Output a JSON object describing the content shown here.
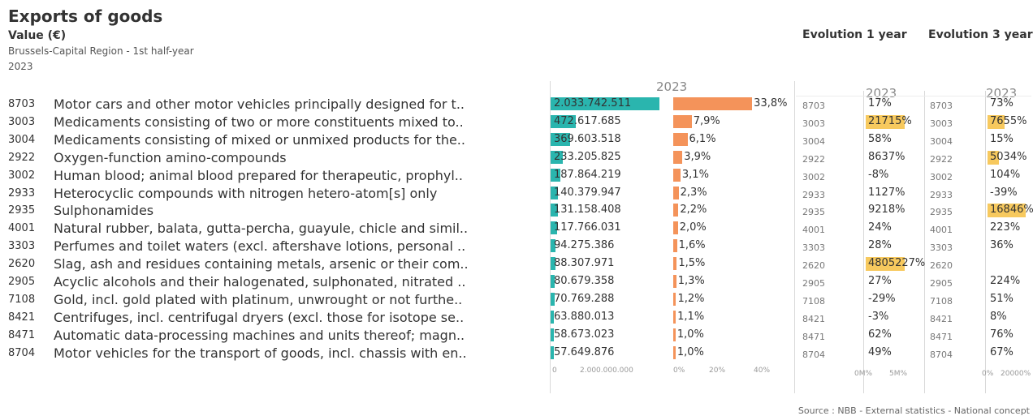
{
  "header": {
    "title": "Exports of goods",
    "subtitle": "Value (€)",
    "region": "Brussels-Capital Region - 1st half-year",
    "year": "2023",
    "evo1_label": "Evolution 1 year",
    "evo3_label": "Evolution 3 years"
  },
  "footer": {
    "source": "Source : NBB - External statistics - National concept"
  },
  "colors": {
    "value_bar": "#2ab5ae",
    "share_bar": "#f4935a",
    "highlight": "#f7c95e"
  },
  "chart_data": {
    "type": "table",
    "column_year": "2023",
    "value_axis": {
      "ticks": [
        "0",
        "2.000.000.000"
      ],
      "range": [
        0,
        2200000000
      ]
    },
    "share_axis": {
      "ticks": [
        "0%",
        "20%",
        "40%"
      ],
      "range": [
        0,
        40
      ]
    },
    "evo1_axis": {
      "ticks": [
        "0M%",
        "5M%"
      ]
    },
    "evo3_axis": {
      "ticks": [
        "0%",
        "20000%"
      ]
    },
    "rows": [
      {
        "code": "8703",
        "desc": "Motor cars and other motor vehicles principally designed for t..",
        "value": 2033742511,
        "value_label": "2.033.742.511",
        "share": 33.8,
        "share_label": "33,8%",
        "evo1": 17,
        "evo1_label": "17%",
        "evo3": 73,
        "evo3_label": "73%"
      },
      {
        "code": "3003",
        "desc": "Medicaments consisting of two or more constituents mixed to..",
        "value": 472617685,
        "value_label": "472.617.685",
        "share": 7.9,
        "share_label": "7,9%",
        "evo1": 21715,
        "evo1_label": "21715%",
        "evo3": 7655,
        "evo3_label": "7655%"
      },
      {
        "code": "3004",
        "desc": "Medicaments consisting of mixed or unmixed products for the..",
        "value": 369603518,
        "value_label": "369.603.518",
        "share": 6.1,
        "share_label": "6,1%",
        "evo1": 58,
        "evo1_label": "58%",
        "evo3": 15,
        "evo3_label": "15%"
      },
      {
        "code": "2922",
        "desc": "Oxygen-function amino-compounds",
        "value": 233205825,
        "value_label": "233.205.825",
        "share": 3.9,
        "share_label": "3,9%",
        "evo1": 8637,
        "evo1_label": "8637%",
        "evo3": 5034,
        "evo3_label": "5034%"
      },
      {
        "code": "3002",
        "desc": "Human blood; animal blood prepared for therapeutic, prophyl..",
        "value": 187864219,
        "value_label": "187.864.219",
        "share": 3.1,
        "share_label": "3,1%",
        "evo1": -8,
        "evo1_label": "-8%",
        "evo3": 104,
        "evo3_label": "104%"
      },
      {
        "code": "2933",
        "desc": "Heterocyclic compounds with nitrogen hetero-atom[s] only",
        "value": 140379947,
        "value_label": "140.379.947",
        "share": 2.3,
        "share_label": "2,3%",
        "evo1": 1127,
        "evo1_label": "1127%",
        "evo3": -39,
        "evo3_label": "-39%"
      },
      {
        "code": "2935",
        "desc": "Sulphonamides",
        "value": 131158408,
        "value_label": "131.158.408",
        "share": 2.2,
        "share_label": "2,2%",
        "evo1": 9218,
        "evo1_label": "9218%",
        "evo3": 16846,
        "evo3_label": "16846%"
      },
      {
        "code": "4001",
        "desc": "Natural rubber, balata, gutta-percha, guayule, chicle and simil..",
        "value": 117766031,
        "value_label": "117.766.031",
        "share": 2.0,
        "share_label": "2,0%",
        "evo1": 24,
        "evo1_label": "24%",
        "evo3": 223,
        "evo3_label": "223%"
      },
      {
        "code": "3303",
        "desc": "Perfumes and toilet waters (excl. aftershave lotions, personal ..",
        "value": 94275386,
        "value_label": "94.275.386",
        "share": 1.6,
        "share_label": "1,6%",
        "evo1": 28,
        "evo1_label": "28%",
        "evo3": 36,
        "evo3_label": "36%"
      },
      {
        "code": "2620",
        "desc": "Slag, ash and residues containing metals, arsenic or their com..",
        "value": 88307971,
        "value_label": "88.307.971",
        "share": 1.5,
        "share_label": "1,5%",
        "evo1": 4805227,
        "evo1_label": "4805227%",
        "evo3": null,
        "evo3_label": ""
      },
      {
        "code": "2905",
        "desc": "Acyclic alcohols and their halogenated, sulphonated, nitrated ..",
        "value": 80679358,
        "value_label": "80.679.358",
        "share": 1.3,
        "share_label": "1,3%",
        "evo1": 27,
        "evo1_label": "27%",
        "evo3": 224,
        "evo3_label": "224%"
      },
      {
        "code": "7108",
        "desc": "Gold, incl. gold plated with platinum, unwrought or not furthe..",
        "value": 70769288,
        "value_label": "70.769.288",
        "share": 1.2,
        "share_label": "1,2%",
        "evo1": -29,
        "evo1_label": "-29%",
        "evo3": 51,
        "evo3_label": "51%"
      },
      {
        "code": "8421",
        "desc": "Centrifuges, incl. centrifugal dryers (excl. those for isotope se..",
        "value": 63880013,
        "value_label": "63.880.013",
        "share": 1.1,
        "share_label": "1,1%",
        "evo1": -3,
        "evo1_label": "-3%",
        "evo3": 8,
        "evo3_label": "8%"
      },
      {
        "code": "8471",
        "desc": "Automatic data-processing machines and units thereof; magn..",
        "value": 58673023,
        "value_label": "58.673.023",
        "share": 1.0,
        "share_label": "1,0%",
        "evo1": 62,
        "evo1_label": "62%",
        "evo3": 76,
        "evo3_label": "76%"
      },
      {
        "code": "8704",
        "desc": "Motor vehicles for the transport of goods, incl. chassis with en..",
        "value": 57649876,
        "value_label": "57.649.876",
        "share": 1.0,
        "share_label": "1,0%",
        "evo1": 49,
        "evo1_label": "49%",
        "evo3": 67,
        "evo3_label": "67%"
      }
    ]
  }
}
